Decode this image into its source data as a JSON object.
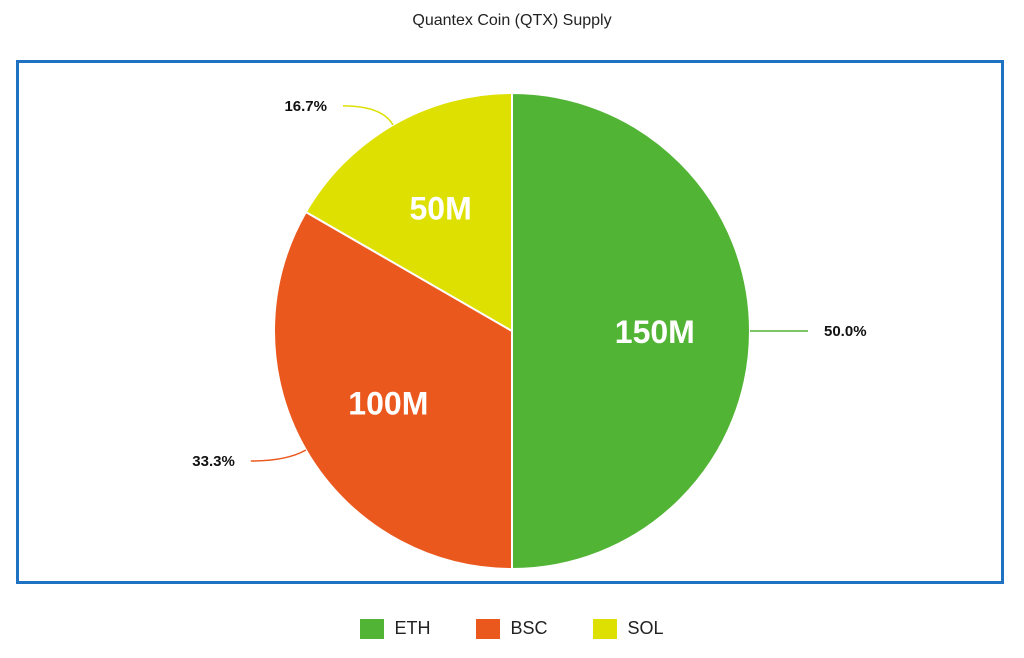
{
  "chart_data": {
    "type": "pie",
    "title": "Quantex Coin (QTX) Supply",
    "slices": [
      {
        "name": "ETH",
        "value": 150,
        "value_label": "150M",
        "percent_label": "50.0%",
        "color": "#52b435"
      },
      {
        "name": "BSC",
        "value": 100,
        "value_label": "100M",
        "percent_label": "33.3%",
        "color": "#eb581e"
      },
      {
        "name": "SOL",
        "value": 50,
        "value_label": "50M",
        "percent_label": "16.7%",
        "color": "#dde000"
      }
    ],
    "legend_position": "bottom-center",
    "frame_color": "#1f72c1"
  }
}
